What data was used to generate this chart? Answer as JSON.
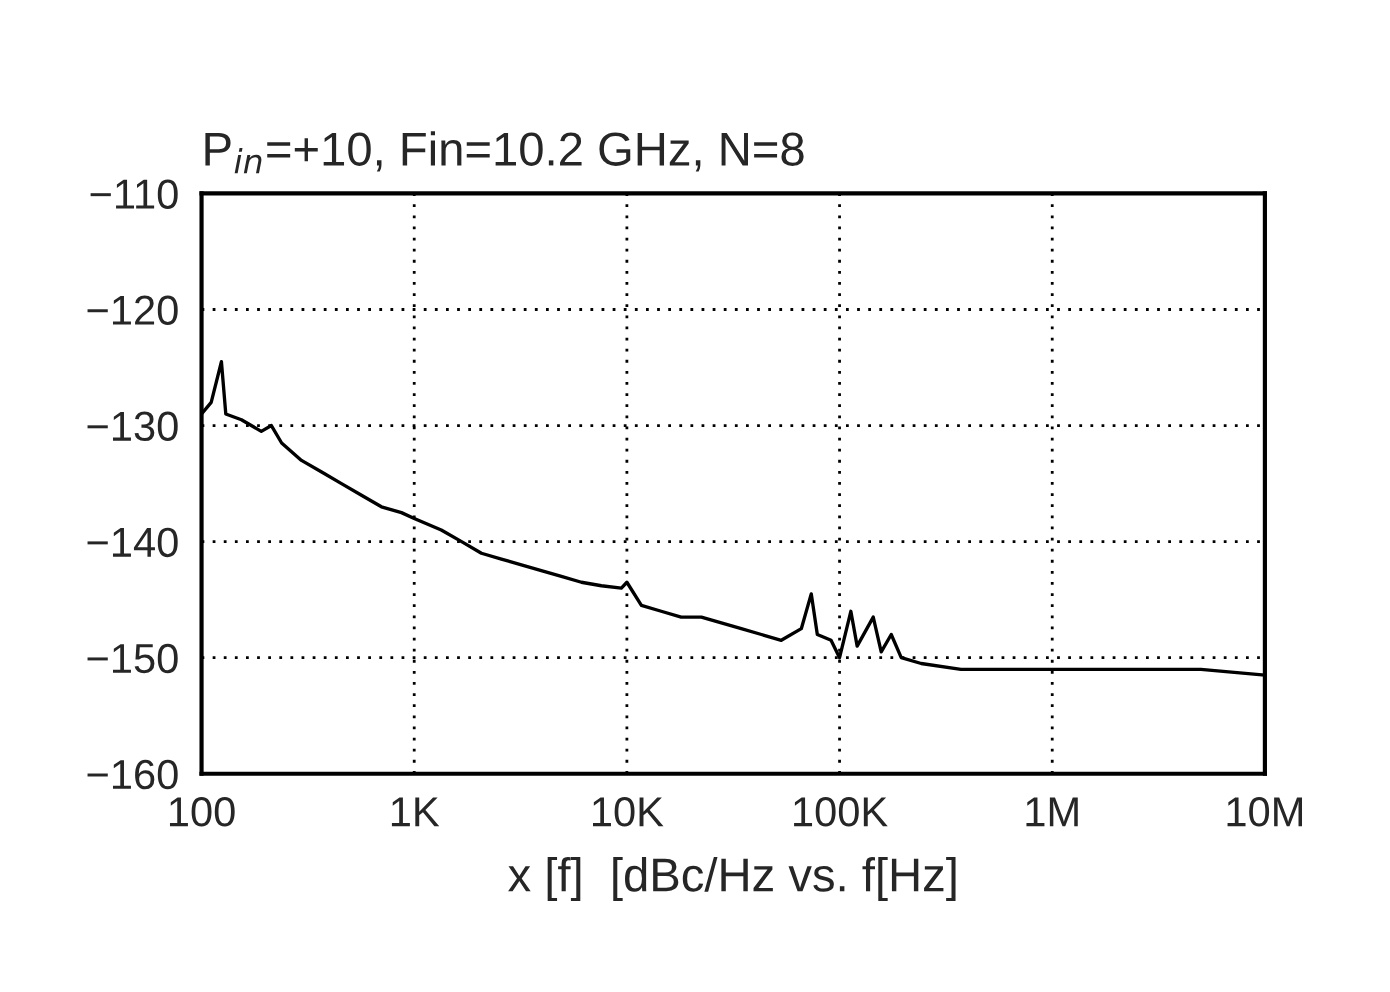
{
  "chart_data": {
    "type": "line",
    "title": "P$_{in}$=+10, Fin=10.2 GHz, N=8",
    "xlabel": "x [f]  [dBc/Hz vs. f[Hz]",
    "log": "x",
    "grid": true,
    "series": [
      {
        "color": "#000000",
        "x": [
          100,
          111,
          124,
          130,
          154,
          191,
          213,
          238,
          295,
          367,
          455,
          565,
          701,
          871,
          1000,
          1340,
          1670,
          2070,
          2570,
          3190,
          3960,
          4920,
          6110,
          7590,
          9420,
          10000,
          11700,
          14500,
          18000,
          22400,
          27800,
          34500,
          42900,
          53200,
          66100,
          73600,
          78600,
          91200,
          100000,
          113000,
          121000,
          144000,
          157000,
          175000,
          195000,
          242000,
          372000,
          574000,
          1000000,
          2100000,
          5000000,
          10000000
        ],
        "values": [
          -129,
          -128,
          -124.5,
          -129,
          -129.5,
          -130.5,
          -130,
          -131.5,
          -133,
          -134,
          -135,
          -136,
          -137,
          -137.5,
          -138,
          -139,
          -140,
          -141,
          -141.5,
          -142,
          -142.5,
          -143,
          -143.5,
          -143.8,
          -144,
          -143.5,
          -145.5,
          -146,
          -146.5,
          -146.5,
          -147,
          -147.5,
          -148,
          -148.5,
          -147.5,
          -144.5,
          -148,
          -148.5,
          -150,
          -146,
          -149,
          -146.5,
          -149.5,
          -148,
          -150,
          -150.5,
          -151,
          -151,
          -151,
          -151,
          -151,
          -151.5
        ]
      }
    ],
    "xlim": [
      100,
      10000000
    ],
    "ylim": [
      -160,
      -110
    ],
    "xticks": [
      {
        "value": 100,
        "label": "100"
      },
      {
        "value": 1000,
        "label": "1K"
      },
      {
        "value": 10000,
        "label": "10K"
      },
      {
        "value": 100000,
        "label": "100K"
      },
      {
        "value": 1000000,
        "label": "1M"
      },
      {
        "value": 10000000,
        "label": "10M"
      }
    ],
    "yticks": [
      {
        "value": -110,
        "label": "−110"
      },
      {
        "value": -120,
        "label": "−120"
      },
      {
        "value": -130,
        "label": "−130"
      },
      {
        "value": -140,
        "label": "−140"
      },
      {
        "value": -150,
        "label": "−150"
      },
      {
        "value": -160,
        "label": "−160"
      }
    ]
  }
}
